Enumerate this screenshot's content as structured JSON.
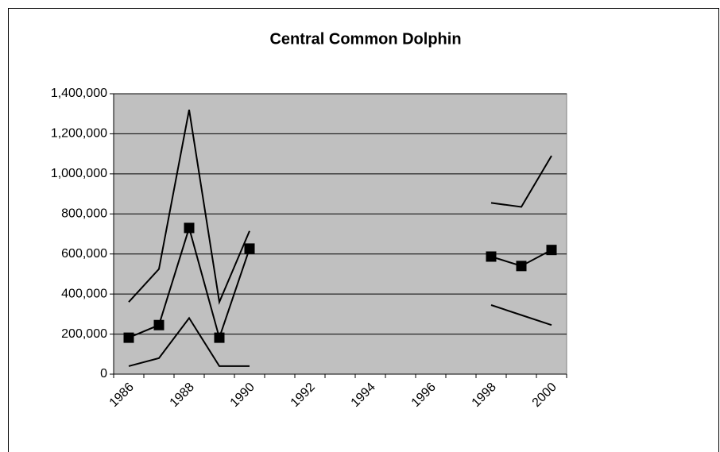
{
  "chart_data": {
    "type": "line",
    "title": "Central Common Dolphin",
    "categories": [
      "1986",
      null,
      "1988",
      null,
      "1990",
      null,
      "1992",
      null,
      "1994",
      null,
      "1996",
      null,
      "1998",
      null,
      "2000"
    ],
    "series": [
      {
        "color": "#000000",
        "marker": "square",
        "values": [
          182000,
          245000,
          730000,
          182000,
          627000,
          null,
          null,
          null,
          null,
          null,
          null,
          null,
          587000,
          540000,
          620000
        ]
      },
      {
        "color": "#000000",
        "values": [
          360000,
          525000,
          1320000,
          360000,
          715000,
          null,
          null,
          null,
          null,
          null,
          null,
          null,
          855000,
          835000,
          1090000
        ]
      },
      {
        "color": "#000000",
        "values": [
          40000,
          80000,
          280000,
          40000,
          40000,
          null,
          null,
          null,
          null,
          null,
          null,
          null,
          345000,
          295000,
          245000
        ]
      }
    ],
    "ylim": [
      0,
      1400000
    ],
    "yticks": [
      0,
      {
        "value": 200000,
        "label": "200,000"
      },
      {
        "value": 400000,
        "label": "400,000"
      },
      {
        "value": 600000,
        "label": "600,000"
      },
      {
        "value": 800000,
        "label": "800,000"
      },
      {
        "value": 1000000,
        "label": "1,000,000"
      },
      {
        "value": 1200000,
        "label": "1,200,000"
      },
      {
        "value": 1400000,
        "label": "1,400,000"
      }
    ],
    "grid": true,
    "plot_background": "#c0c0c0"
  }
}
